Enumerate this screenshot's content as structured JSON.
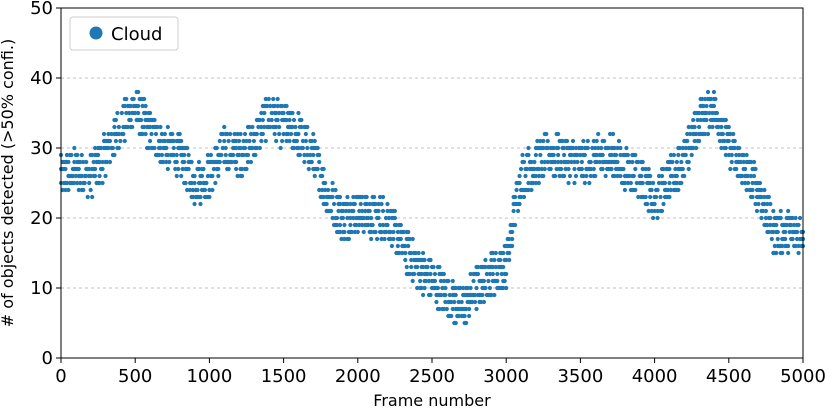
{
  "chart_data": {
    "type": "scatter",
    "title": "",
    "xlabel": "Frame number",
    "ylabel": "# of objects detected (>50% confi.)",
    "xlim": [
      0,
      5000
    ],
    "ylim": [
      0,
      50
    ],
    "xticks": [
      0,
      500,
      1000,
      1500,
      2000,
      2500,
      3000,
      3500,
      4000,
      4500,
      5000
    ],
    "yticks": [
      0,
      10,
      20,
      30,
      40,
      50
    ],
    "grid": "horizontal-dashed",
    "legend_position": "top-left",
    "color": "#1f77b4",
    "series": [
      {
        "name": "Cloud",
        "trend": [
          [
            0,
            26
          ],
          [
            100,
            27
          ],
          [
            200,
            26
          ],
          [
            300,
            29
          ],
          [
            400,
            33
          ],
          [
            500,
            36
          ],
          [
            600,
            32
          ],
          [
            700,
            30
          ],
          [
            800,
            29
          ],
          [
            900,
            25
          ],
          [
            1000,
            26
          ],
          [
            1100,
            30
          ],
          [
            1200,
            29
          ],
          [
            1300,
            31
          ],
          [
            1400,
            35
          ],
          [
            1500,
            33
          ],
          [
            1600,
            32
          ],
          [
            1700,
            29
          ],
          [
            1800,
            23
          ],
          [
            1900,
            20
          ],
          [
            2000,
            21
          ],
          [
            2100,
            20
          ],
          [
            2200,
            20
          ],
          [
            2300,
            16
          ],
          [
            2400,
            13
          ],
          [
            2500,
            11
          ],
          [
            2600,
            9
          ],
          [
            2700,
            7
          ],
          [
            2800,
            10
          ],
          [
            2900,
            12
          ],
          [
            3000,
            13
          ],
          [
            3050,
            20
          ],
          [
            3100,
            26
          ],
          [
            3200,
            28
          ],
          [
            3300,
            29
          ],
          [
            3500,
            28
          ],
          [
            3700,
            29
          ],
          [
            3800,
            27
          ],
          [
            3900,
            26
          ],
          [
            4000,
            22
          ],
          [
            4100,
            26
          ],
          [
            4200,
            28
          ],
          [
            4300,
            34
          ],
          [
            4400,
            36
          ],
          [
            4500,
            30
          ],
          [
            4600,
            27
          ],
          [
            4700,
            24
          ],
          [
            4800,
            18
          ],
          [
            4900,
            18
          ],
          [
            5000,
            18
          ]
        ],
        "spread": 3
      }
    ]
  }
}
